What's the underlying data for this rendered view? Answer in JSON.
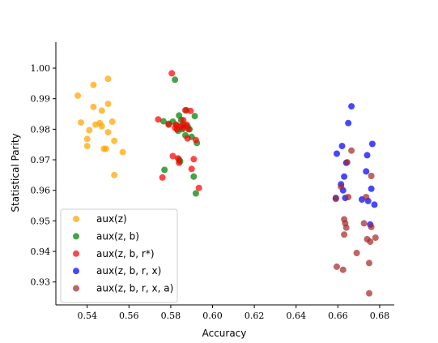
{
  "chart_data": {
    "type": "scatter",
    "title": "",
    "xlabel": "Accuracy",
    "ylabel": "Statistical Parity",
    "xlim": [
      0.525,
      0.687
    ],
    "ylim": [
      0.9225,
      1.0085
    ],
    "xticks": [
      "0.54",
      "0.56",
      "0.58",
      "0.60",
      "0.62",
      "0.64",
      "0.66",
      "0.68"
    ],
    "yticks": [
      "0.93",
      "0.94",
      "0.95",
      "0.96",
      "0.97",
      "0.98",
      "0.99",
      "1.00"
    ],
    "grid": false,
    "legend_position": "lower-left",
    "series": [
      {
        "name": "aux(z)",
        "color": "#FFA500",
        "points": [
          [
            0.5355,
            0.991
          ],
          [
            0.537,
            0.9822
          ],
          [
            0.54,
            0.9745
          ],
          [
            0.54,
            0.9768
          ],
          [
            0.541,
            0.9797
          ],
          [
            0.543,
            0.9945
          ],
          [
            0.543,
            0.9873
          ],
          [
            0.544,
            0.9815
          ],
          [
            0.546,
            0.982
          ],
          [
            0.547,
            0.981
          ],
          [
            0.547,
            0.9861
          ],
          [
            0.548,
            0.9736
          ],
          [
            0.549,
            0.9736
          ],
          [
            0.55,
            0.9965
          ],
          [
            0.55,
            0.9883
          ],
          [
            0.55,
            0.979
          ],
          [
            0.552,
            0.9825
          ],
          [
            0.553,
            0.9762
          ],
          [
            0.553,
            0.965
          ],
          [
            0.557,
            0.9725
          ]
        ]
      },
      {
        "name": "aux(z, b)",
        "color": "#008000",
        "points": [
          [
            0.5765,
            0.9826
          ],
          [
            0.577,
            0.9667
          ],
          [
            0.579,
            0.9818
          ],
          [
            0.581,
            0.9825
          ],
          [
            0.582,
            0.9962
          ],
          [
            0.583,
            0.9812
          ],
          [
            0.5835,
            0.9795
          ],
          [
            0.584,
            0.9845
          ],
          [
            0.584,
            0.97
          ],
          [
            0.5845,
            0.9695
          ],
          [
            0.585,
            0.983
          ],
          [
            0.5855,
            0.98
          ],
          [
            0.586,
            0.9815
          ],
          [
            0.587,
            0.978
          ],
          [
            0.5875,
            0.9862
          ],
          [
            0.588,
            0.981
          ],
          [
            0.589,
            0.98
          ],
          [
            0.59,
            0.9775
          ],
          [
            0.591,
            0.9645
          ],
          [
            0.5915,
            0.9843
          ],
          [
            0.592,
            0.959
          ],
          [
            0.5925,
            0.9755
          ]
        ]
      },
      {
        "name": "aux(z, b, r*)",
        "color": "#FF0000",
        "points": [
          [
            0.574,
            0.9832
          ],
          [
            0.576,
            0.9642
          ],
          [
            0.579,
            0.9815
          ],
          [
            0.5805,
            0.9983
          ],
          [
            0.581,
            0.9712
          ],
          [
            0.582,
            0.9805
          ],
          [
            0.5825,
            0.9815
          ],
          [
            0.583,
            0.98
          ],
          [
            0.5835,
            0.9705
          ],
          [
            0.584,
            0.969
          ],
          [
            0.585,
            0.981
          ],
          [
            0.586,
            0.983
          ],
          [
            0.586,
            0.9805
          ],
          [
            0.587,
            0.9862
          ],
          [
            0.5875,
            0.9815
          ],
          [
            0.588,
            0.977
          ],
          [
            0.5885,
            0.98
          ],
          [
            0.5895,
            0.986
          ],
          [
            0.59,
            0.967
          ],
          [
            0.591,
            0.9702
          ],
          [
            0.592,
            0.9765
          ],
          [
            0.5935,
            0.9608
          ]
        ]
      },
      {
        "name": "aux(z, b, r, x)",
        "color": "#0000FF",
        "points": [
          [
            0.659,
            0.9575
          ],
          [
            0.6595,
            0.972
          ],
          [
            0.6615,
            0.962
          ],
          [
            0.662,
            0.9745
          ],
          [
            0.6625,
            0.96
          ],
          [
            0.663,
            0.9645
          ],
          [
            0.6635,
            0.9575
          ],
          [
            0.664,
            0.969
          ],
          [
            0.665,
            0.982
          ],
          [
            0.6665,
            0.9875
          ],
          [
            0.6715,
            0.957
          ],
          [
            0.6735,
            0.9662
          ],
          [
            0.674,
            0.9715
          ],
          [
            0.6745,
            0.9565
          ],
          [
            0.6755,
            0.9488
          ],
          [
            0.676,
            0.9605
          ],
          [
            0.6765,
            0.9752
          ],
          [
            0.6775,
            0.9553
          ]
        ]
      },
      {
        "name": "aux(z, b, r, x, a)",
        "color": "#A52A2A",
        "points": [
          [
            0.659,
            0.9572
          ],
          [
            0.6595,
            0.935
          ],
          [
            0.6615,
            0.9612
          ],
          [
            0.6625,
            0.934
          ],
          [
            0.663,
            0.9455
          ],
          [
            0.663,
            0.9505
          ],
          [
            0.6635,
            0.9492
          ],
          [
            0.664,
            0.9478
          ],
          [
            0.6645,
            0.9692
          ],
          [
            0.665,
            0.9578
          ],
          [
            0.6665,
            0.973
          ],
          [
            0.669,
            0.9395
          ],
          [
            0.6725,
            0.9492
          ],
          [
            0.6735,
            0.9578
          ],
          [
            0.674,
            0.944
          ],
          [
            0.675,
            0.9362
          ],
          [
            0.675,
            0.9263
          ],
          [
            0.6755,
            0.9432
          ],
          [
            0.676,
            0.948
          ],
          [
            0.676,
            0.9647
          ],
          [
            0.678,
            0.9445
          ]
        ]
      }
    ]
  }
}
